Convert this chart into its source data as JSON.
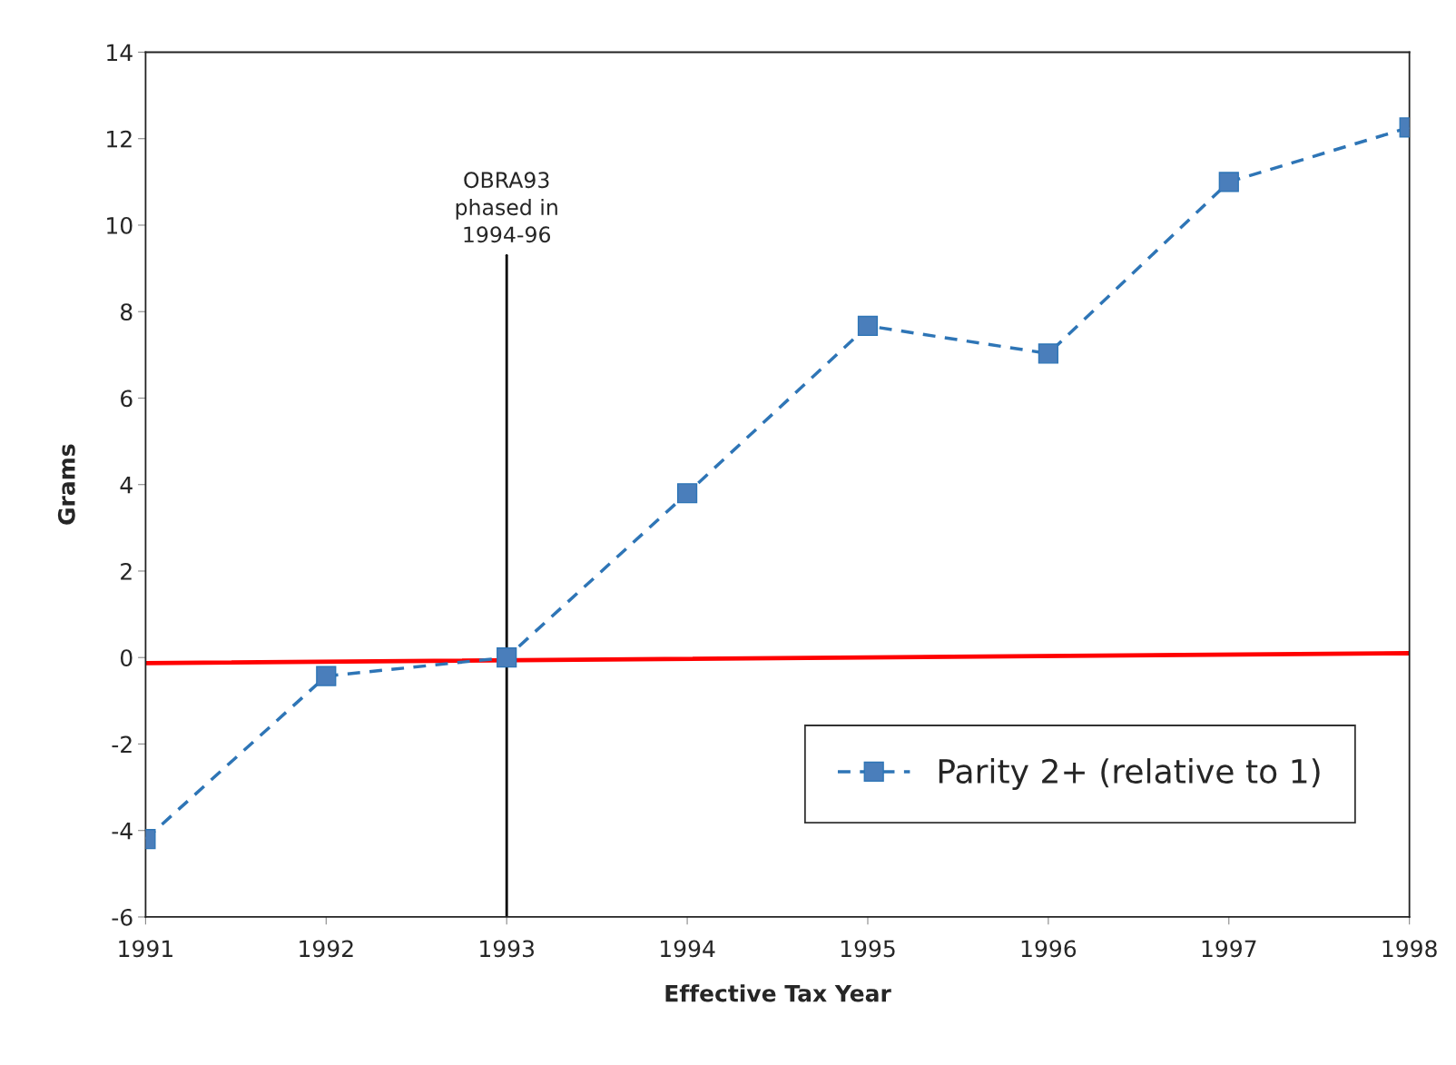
{
  "chart_data": {
    "type": "line",
    "xlabel": "Effective Tax Year",
    "ylabel": "Grams",
    "x": [
      1991,
      1992,
      1993,
      1994,
      1995,
      1996,
      1997,
      1998
    ],
    "series": [
      {
        "name": "Parity 2+ (relative to 1)",
        "color": "#2e75b6",
        "values": [
          -4.2,
          -0.43,
          0.0,
          3.8,
          7.67,
          7.03,
          11.0,
          12.26
        ],
        "marker": "square",
        "line_style": "dashed"
      },
      {
        "type": "line",
        "color": "#ff0000",
        "x": [
          1991,
          1998
        ],
        "values": [
          -0.13,
          0.1
        ],
        "marker": "none",
        "line_style": "solid"
      }
    ],
    "ref_lines": [
      {
        "axis": "x",
        "value": 1993,
        "label": "OBRA93\nphased in\n1994-96",
        "color": "#000000"
      }
    ],
    "xlim": [
      1991,
      1998
    ],
    "xticks": [
      1991,
      1992,
      1993,
      1994,
      1995,
      1996,
      1997,
      1998
    ],
    "ylim": [
      -6,
      14
    ],
    "yticks": [
      -6,
      -4,
      -2,
      0,
      2,
      4,
      6,
      8,
      10,
      12,
      14
    ],
    "grid": false,
    "legend": "bottom right"
  }
}
